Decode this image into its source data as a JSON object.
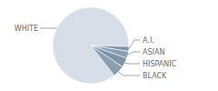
{
  "chart_data": {
    "type": "pie",
    "categories": [
      "WHITE",
      "A.I.",
      "ASIAN",
      "HISPANIC",
      "BLACK"
    ],
    "values": [
      86,
      2,
      3,
      4,
      5
    ],
    "colors": [
      "#d6dee7",
      "#7d93a7",
      "#8a9fb2",
      "#7d93a7",
      "#8a9fb2"
    ]
  }
}
